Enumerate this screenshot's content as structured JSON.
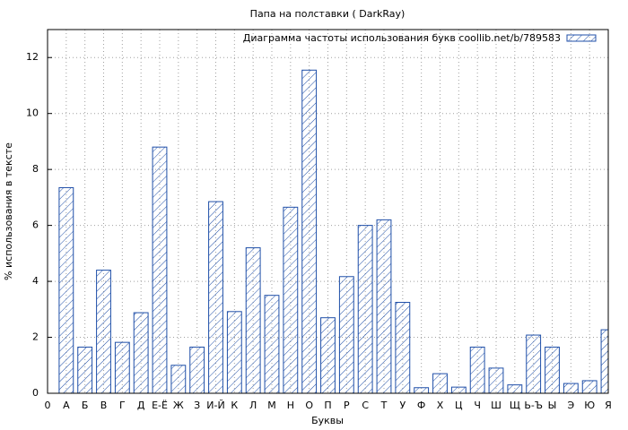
{
  "chart_data": {
    "type": "bar",
    "title": "Папа на полставки ( DarkRay)",
    "x_label": "Буквы",
    "y_label": "% использования в тексте",
    "categories": [
      "0",
      "А",
      "Б",
      "В",
      "Г",
      "Д",
      "Е-Ё",
      "Ж",
      "З",
      "И-Й",
      "К",
      "Л",
      "М",
      "Н",
      "О",
      "П",
      "Р",
      "С",
      "Т",
      "У",
      "Ф",
      "Х",
      "Ц",
      "Ч",
      "Ш",
      "Щ",
      "Ь-Ъ",
      "Ы",
      "Э",
      "Ю",
      "Я"
    ],
    "series": [
      {
        "name": "Диаграмма частоты использования букв coollib.net/b/789583",
        "color": "#1f4fa8",
        "values": [
          null,
          7.35,
          1.65,
          4.4,
          1.82,
          2.88,
          8.8,
          1.0,
          1.65,
          6.85,
          2.92,
          5.2,
          3.5,
          6.65,
          11.55,
          2.7,
          4.17,
          6.0,
          6.2,
          3.25,
          0.2,
          0.7,
          0.22,
          1.65,
          0.9,
          0.3,
          2.08,
          1.65,
          0.35,
          0.45,
          2.27
        ]
      }
    ],
    "ylim": [
      0,
      13
    ],
    "yticks": [
      0,
      2,
      4,
      6,
      8,
      10,
      12
    ],
    "grid": true,
    "legend": "top-right"
  }
}
